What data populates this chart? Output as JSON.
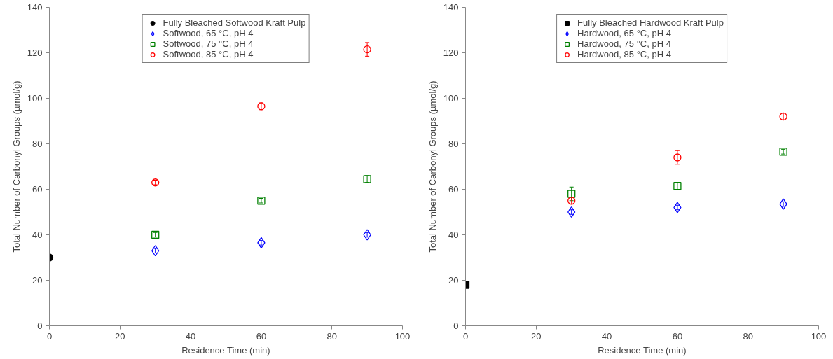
{
  "chart_data": [
    {
      "type": "scatter",
      "xlabel": "Residence Time (min)",
      "ylabel": "Total Number of Carbonyl Groups (µmol/g)",
      "xlim": [
        0,
        100
      ],
      "xticks": [
        0,
        20,
        40,
        60,
        80,
        100
      ],
      "ylim": [
        0,
        140
      ],
      "yticks": [
        0,
        20,
        40,
        60,
        80,
        100,
        120,
        140
      ],
      "grid": false,
      "legend": "top",
      "series": [
        {
          "name": "Fully Bleached Softwood Kraft Pulp",
          "color": "#000000",
          "marker": "circle",
          "x": [
            0
          ],
          "values": [
            30
          ],
          "errors": [
            null
          ]
        },
        {
          "name": "Softwood, 65 °C, pH 4",
          "color": "#0000ff",
          "marker": "diamond",
          "x": [
            30,
            60,
            90
          ],
          "values": [
            33,
            36.5,
            40
          ],
          "errors": [
            1,
            1,
            1
          ]
        },
        {
          "name": "Softwood, 75 °C, pH 4",
          "color": "#008000",
          "marker": "square",
          "x": [
            30,
            60,
            90
          ],
          "values": [
            40,
            55,
            64.5
          ],
          "errors": [
            1,
            1,
            1.5
          ]
        },
        {
          "name": "Softwood, 85 °C, pH 4",
          "color": "#ff0000",
          "marker": "circle",
          "x": [
            30,
            60,
            90
          ],
          "values": [
            63,
            96.5,
            121.5
          ],
          "errors": [
            1,
            1.5,
            3
          ]
        }
      ]
    },
    {
      "type": "scatter",
      "xlabel": "Residence Time (min)",
      "ylabel": "Total Number of Carbonyl Groups (µmol/g)",
      "xlim": [
        0,
        100
      ],
      "xticks": [
        0,
        20,
        40,
        60,
        80,
        100
      ],
      "ylim": [
        0,
        140
      ],
      "yticks": [
        0,
        20,
        40,
        60,
        80,
        100,
        120,
        140
      ],
      "grid": false,
      "legend": "top",
      "series": [
        {
          "name": "Fully Bleached Hardwood Kraft Pulp",
          "color": "#000000",
          "marker": "square",
          "x": [
            0
          ],
          "values": [
            18
          ],
          "errors": [
            null
          ]
        },
        {
          "name": "Hardwood, 65 °C, pH 4",
          "color": "#0000ff",
          "marker": "diamond",
          "x": [
            30,
            60,
            90
          ],
          "values": [
            50,
            52,
            53.5
          ],
          "errors": [
            1,
            1,
            1
          ]
        },
        {
          "name": "Hardwood, 75 °C, pH 4",
          "color": "#008000",
          "marker": "square",
          "x": [
            30,
            60,
            90
          ],
          "values": [
            58,
            61.5,
            76.5
          ],
          "errors": [
            3,
            1.5,
            1
          ]
        },
        {
          "name": "Hardwood, 85 °C, pH 4",
          "color": "#ff0000",
          "marker": "circle",
          "x": [
            30,
            60,
            90
          ],
          "values": [
            55,
            74,
            92
          ],
          "errors": [
            1.5,
            3,
            1.5
          ]
        }
      ]
    }
  ]
}
